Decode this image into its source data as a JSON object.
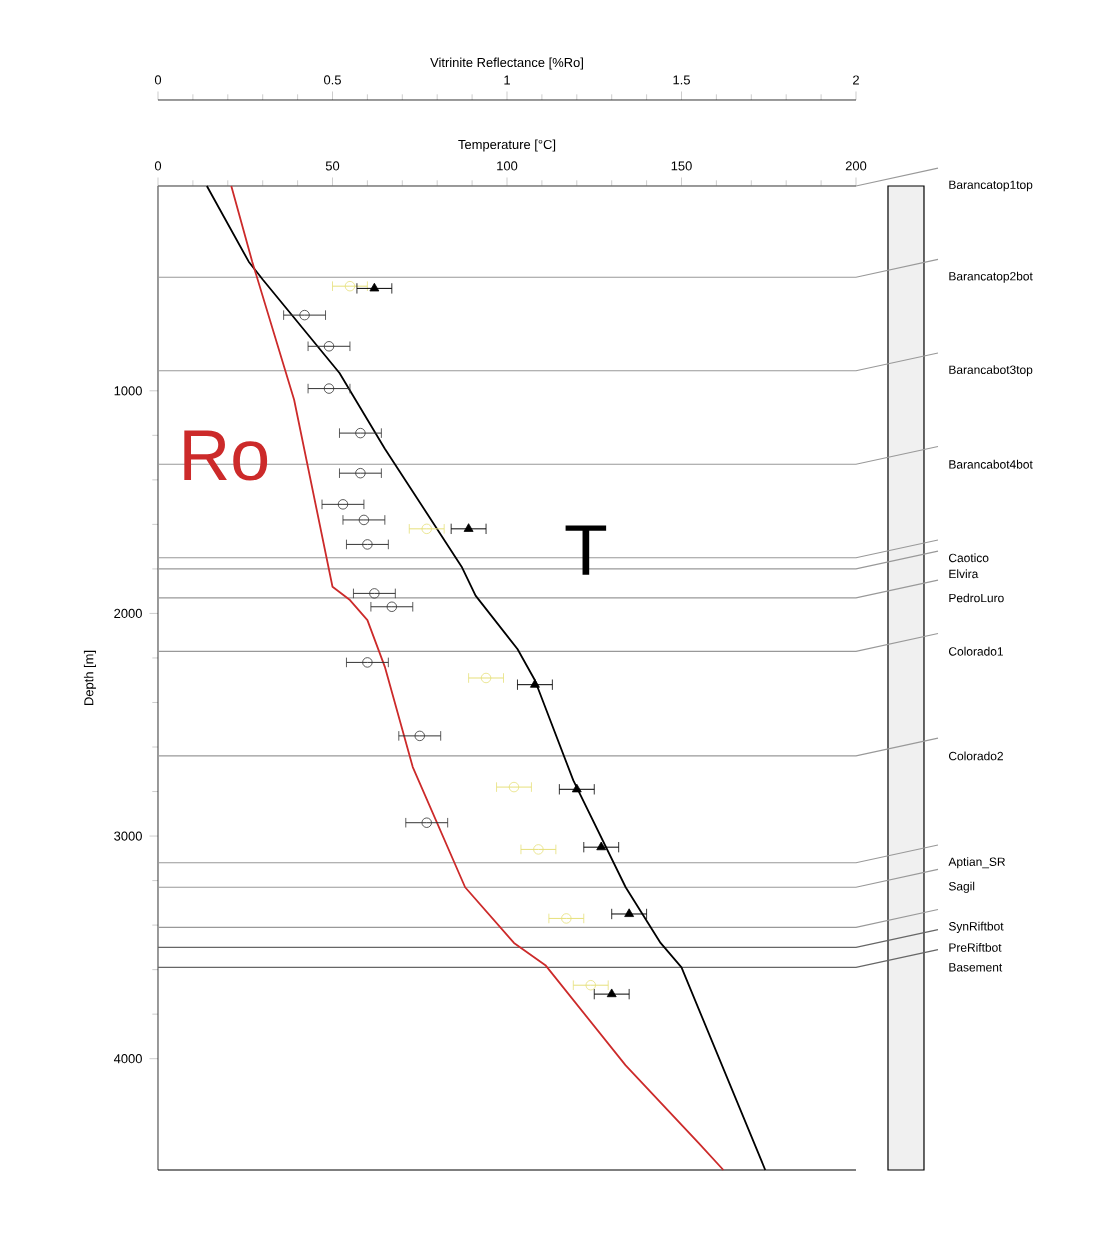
{
  "chart_data": {
    "type": "line",
    "xlabel": "Temperature [°C]",
    "xlim": [
      0,
      200
    ],
    "xticks": [
      0,
      50,
      100,
      150,
      200
    ],
    "x2label": "Vitrinite Reflectance [%Ro]",
    "x2lim": [
      0,
      2
    ],
    "x2ticks": [
      0,
      0.5,
      1,
      1.5,
      2
    ],
    "ylabel": "Depth [m]",
    "ylim": [
      4500,
      80
    ],
    "yticks": [
      1000,
      2000,
      3000,
      4000
    ],
    "series": [
      {
        "name": "T",
        "type": "line",
        "color": "#000000",
        "x": [
          14,
          26,
          30,
          52,
          65,
          87,
          91,
          103,
          108,
          119,
          134,
          144,
          150,
          174
        ],
        "values": [
          80,
          420,
          500,
          920,
          1260,
          1790,
          1920,
          2160,
          2300,
          2750,
          3230,
          3480,
          3590,
          4500
        ]
      },
      {
        "name": "Ro",
        "type": "line",
        "axis": "x2",
        "color": "#cc2a2a",
        "x": [
          0.21,
          0.27,
          0.39,
          0.5,
          0.55,
          0.6,
          0.65,
          0.73,
          0.88,
          1.02,
          1.11,
          1.34,
          1.55,
          1.62
        ],
        "values": [
          80,
          420,
          1040,
          1880,
          1940,
          2030,
          2240,
          2690,
          3230,
          3480,
          3580,
          4030,
          4380,
          4500
        ]
      },
      {
        "type": "scatter",
        "axis": "x2",
        "marker": "circle",
        "color": "#333333",
        "x": [
          0.42,
          0.49,
          0.49,
          0.58,
          0.58,
          0.53,
          0.59,
          0.6,
          0.62,
          0.67,
          0.6,
          0.75,
          0.77
        ],
        "values": [
          660,
          800,
          990,
          1190,
          1370,
          1510,
          1580,
          1690,
          1910,
          1970,
          2220,
          2550,
          2940
        ],
        "xerrors": [
          0.06,
          0.06,
          0.06,
          0.06,
          0.06,
          0.06,
          0.06,
          0.06,
          0.06,
          0.06,
          0.06,
          0.06,
          0.06
        ]
      },
      {
        "type": "scatter",
        "marker": "circle",
        "color": "#e6e07a",
        "x": [
          55,
          77,
          94,
          102,
          109,
          117,
          124
        ],
        "values": [
          530,
          1620,
          2290,
          2780,
          3060,
          3370,
          3670
        ],
        "xerrors": [
          5,
          5,
          5,
          5,
          5,
          5,
          5
        ]
      },
      {
        "type": "scatter",
        "marker": "triangle",
        "color": "#000000",
        "x": [
          62,
          89,
          108,
          120,
          127,
          135,
          130
        ],
        "values": [
          540,
          1620,
          2320,
          2790,
          3050,
          3350,
          3710
        ],
        "xerrors": [
          5,
          5,
          5,
          5,
          5,
          5,
          5
        ]
      }
    ],
    "ref_lines": [
      {
        "axis": "y",
        "value": 80,
        "label": "Barancatop1top",
        "color": "#999999"
      },
      {
        "axis": "y",
        "value": 490,
        "label": "Barancatop2bot",
        "color": "#999999"
      },
      {
        "axis": "y",
        "value": 910,
        "label": "Barancabot3top",
        "color": "#999999"
      },
      {
        "axis": "y",
        "value": 1330,
        "label": "Barancabot4bot",
        "color": "#999999"
      },
      {
        "axis": "y",
        "value": 1750,
        "label": "Caotico",
        "color": "#999999"
      },
      {
        "axis": "y",
        "value": 1800,
        "label": "Elvira",
        "color": "#999999"
      },
      {
        "axis": "y",
        "value": 1930,
        "label": "PedroLuro",
        "color": "#999999"
      },
      {
        "axis": "y",
        "value": 2170,
        "label": "Colorado1",
        "color": "#999999"
      },
      {
        "axis": "y",
        "value": 2640,
        "label": "Colorado2",
        "color": "#999999"
      },
      {
        "axis": "y",
        "value": 3120,
        "label": "Aptian_SR",
        "color": "#999999"
      },
      {
        "axis": "y",
        "value": 3230,
        "label": "Sagil",
        "color": "#999999"
      },
      {
        "axis": "y",
        "value": 3410,
        "label": "SynRiftbot",
        "color": "#999999"
      },
      {
        "axis": "y",
        "value": 3500,
        "label": "PreRiftbot",
        "color": "#666666"
      },
      {
        "axis": "y",
        "value": 3590,
        "label": "Basement",
        "color": "#666666"
      }
    ]
  }
}
